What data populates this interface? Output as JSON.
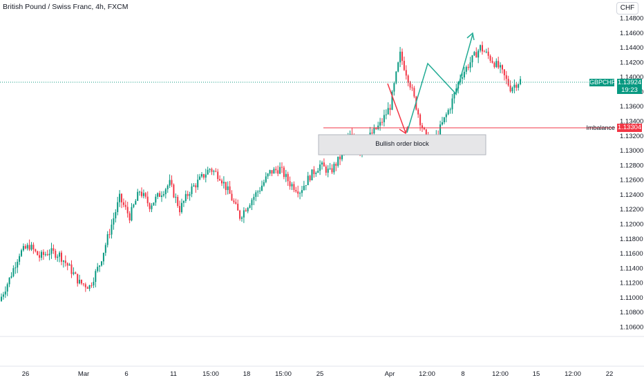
{
  "header": {
    "title": "British Pound / Swiss Franc, 4h, FXCM",
    "currency": "CHF"
  },
  "price": {
    "symbol": "GBPCHF",
    "last": "1.13924",
    "countdown": "19:23",
    "up_color": "#089981",
    "down_color": "#f23645"
  },
  "annotations": {
    "imbalance_label": "Imbalance",
    "imbalance_price": "1.13304",
    "order_block_label": "Bullish order block"
  },
  "chart_data": {
    "type": "candlestick",
    "y_ticks": [
      "1.14800",
      "1.14600",
      "1.14400",
      "1.14200",
      "1.14000",
      "1.13800",
      "1.13600",
      "1.13400",
      "1.13200",
      "1.13000",
      "1.12800",
      "1.12600",
      "1.12400",
      "1.12200",
      "1.12000",
      "1.11800",
      "1.11600",
      "1.11400",
      "1.11200",
      "1.11000",
      "1.10800",
      "1.10600"
    ],
    "x_ticks": [
      "26",
      "Mar",
      "6",
      "11",
      "15:00",
      "18",
      "15:00",
      "25",
      "Apr",
      "12:00",
      "8",
      "12:00",
      "15",
      "12:00",
      "22"
    ],
    "ylim": [
      1.1055,
      1.1485
    ],
    "close_path": [
      1.1095,
      1.1125,
      1.116,
      1.117,
      1.1155,
      1.1162,
      1.1158,
      1.114,
      1.112,
      1.1115,
      1.1145,
      1.119,
      1.1235,
      1.121,
      1.1245,
      1.1225,
      1.124,
      1.1255,
      1.122,
      1.1245,
      1.126,
      1.1275,
      1.1265,
      1.124,
      1.121,
      1.123,
      1.1248,
      1.127,
      1.1275,
      1.1255,
      1.1245,
      1.1265,
      1.128,
      1.127,
      1.129,
      1.132,
      1.13,
      1.132,
      1.1335,
      1.136,
      1.143,
      1.139,
      1.134,
      1.13,
      1.133,
      1.136,
      1.14,
      1.142,
      1.144,
      1.1425,
      1.141,
      1.1385,
      1.1395
    ],
    "order_block": {
      "low": 1.1294,
      "high": 1.1318
    },
    "imbalance_level": 1.13304,
    "current_price": 1.13924,
    "projection_down_target": 1.132,
    "projection_up_path": [
      1.132,
      1.1418,
      1.138,
      1.1458
    ]
  }
}
